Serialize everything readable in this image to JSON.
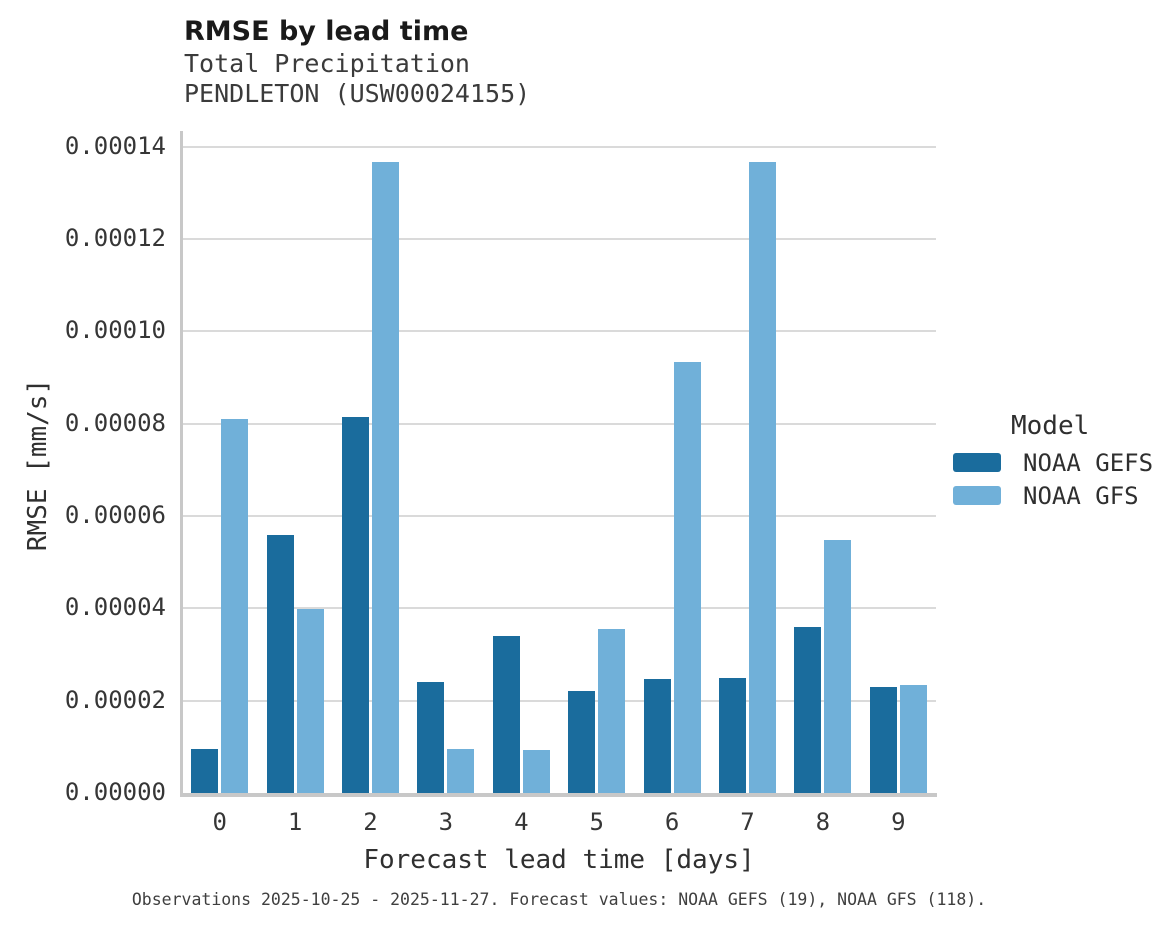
{
  "header": {
    "title": "RMSE by lead time",
    "subtitle_line1": "Total Precipitation",
    "subtitle_line2": "PENDLETON (USW00024155)"
  },
  "chart_data": {
    "type": "bar",
    "title": "RMSE by lead time",
    "subtitle": [
      "Total Precipitation",
      "PENDLETON (USW00024155)"
    ],
    "xlabel": "Forecast lead time [days]",
    "ylabel": "RMSE [mm/s]",
    "categories": [
      "0",
      "1",
      "2",
      "3",
      "4",
      "5",
      "6",
      "7",
      "8",
      "9"
    ],
    "series": [
      {
        "name": "NOAA GEFS",
        "color": "#1a6c9d",
        "values": [
          9.5e-06,
          5.6e-05,
          8.15e-05,
          2.4e-05,
          3.4e-05,
          2.2e-05,
          2.47e-05,
          2.5e-05,
          3.6e-05,
          2.3e-05
        ]
      },
      {
        "name": "NOAA GFS",
        "color": "#70b0d9",
        "values": [
          8.1e-05,
          3.98e-05,
          0.0001368,
          9.5e-06,
          9.3e-06,
          3.55e-05,
          9.33e-05,
          0.0001368,
          5.48e-05,
          2.35e-05
        ]
      }
    ],
    "ylim": [
      0,
      0.000143
    ],
    "yticks": [
      0,
      2e-05,
      4e-05,
      6e-05,
      8e-05,
      0.0001,
      0.00012,
      0.00014
    ],
    "ytick_labels": [
      "0.00000",
      "0.00002",
      "0.00004",
      "0.00006",
      "0.00008",
      "0.00010",
      "0.00012",
      "0.00014"
    ],
    "grid": true,
    "legend_title": "Model",
    "legend_position": "right"
  },
  "footer": {
    "caption": "Observations 2025-10-25 - 2025-11-27. Forecast values: NOAA GEFS (19), NOAA GFS (118)."
  },
  "colors": {
    "gridline": "#dadada",
    "spine": "#c8c8c8",
    "title_text": "#1a1a1a",
    "body_text": "#363636"
  }
}
